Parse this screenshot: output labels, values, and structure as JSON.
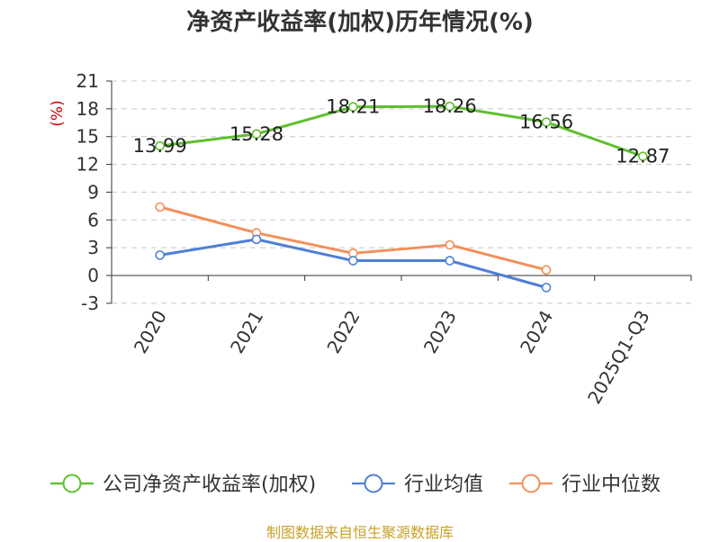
{
  "title": "净资产收益率(加权)历年情况(%)",
  "source": "制图数据来自恒生聚源数据库",
  "chart_data": {
    "type": "line",
    "title": "净资产收益率(加权)历年情况(%)",
    "ylabel": "(%)",
    "ylabel_color": "#cc0000",
    "categories": [
      "2020",
      "2021",
      "2022",
      "2023",
      "2024",
      "2025Q1-Q3"
    ],
    "ylim": [
      -3,
      21
    ],
    "yticks": [
      -3,
      0,
      3,
      6,
      9,
      12,
      15,
      18,
      21
    ],
    "grid": true,
    "legend_position": "bottom",
    "series": [
      {
        "name": "公司净资产收益率(加权)",
        "color": "#5dc02c",
        "show_labels": true,
        "values": [
          13.99,
          15.28,
          18.21,
          18.26,
          16.56,
          12.87
        ]
      },
      {
        "name": "行业均值",
        "color": "#4e7fd6",
        "show_labels": false,
        "values": [
          2.2,
          3.9,
          1.6,
          1.6,
          -1.3,
          null
        ]
      },
      {
        "name": "行业中位数",
        "color": "#f2905a",
        "show_labels": false,
        "values": [
          7.4,
          4.6,
          2.4,
          3.3,
          0.6,
          null
        ]
      }
    ]
  }
}
